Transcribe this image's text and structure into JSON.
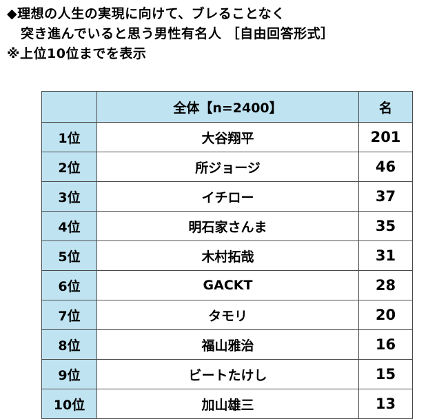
{
  "title": {
    "line1": "◆理想の人生の実現に向けて、ブレることなく",
    "line2": "突き進んでいると思う男性有名人 ［自由回答形式］",
    "note": "※上位10位までを表示"
  },
  "table": {
    "header_rank": "",
    "header_name": "全体【n=2400】",
    "header_count": "名",
    "rows": [
      {
        "rank": "1位",
        "name": "大谷翔平",
        "count": "201"
      },
      {
        "rank": "2位",
        "name": "所ジョージ",
        "count": "46"
      },
      {
        "rank": "3位",
        "name": "イチロー",
        "count": "37"
      },
      {
        "rank": "4位",
        "name": "明石家さんま",
        "count": "35"
      },
      {
        "rank": "5位",
        "name": "木村拓哉",
        "count": "31"
      },
      {
        "rank": "6位",
        "name": "GACKT",
        "count": "28"
      },
      {
        "rank": "7位",
        "name": "タモリ",
        "count": "20"
      },
      {
        "rank": "8位",
        "name": "福山雅治",
        "count": "16"
      },
      {
        "rank": "9位",
        "name": "ビートたけし",
        "count": "15"
      },
      {
        "rank": "10位",
        "name": "加山雄三",
        "count": "13"
      }
    ]
  },
  "colors": {
    "header_fill": "#bfe3f1",
    "border": "#4a4a4a"
  }
}
